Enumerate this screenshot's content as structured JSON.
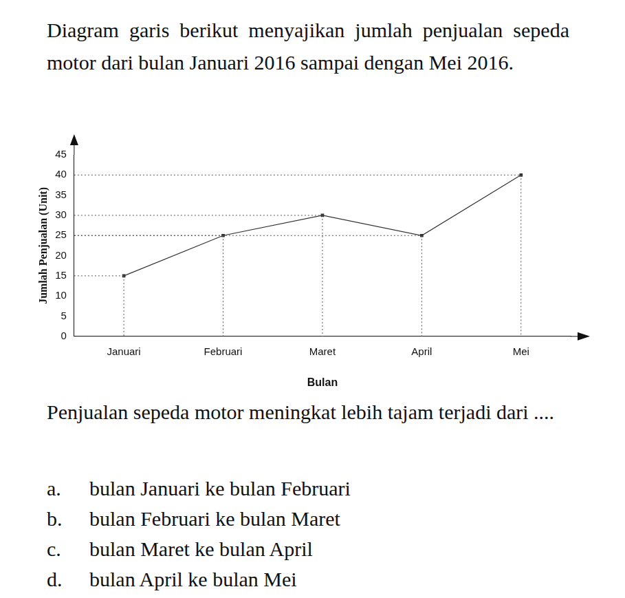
{
  "intro": "Diagram garis berikut menyajikan jumlah penjualan sepeda motor dari bulan Januari 2016 sampai dengan Mei 2016.",
  "chart_data": {
    "type": "line",
    "x_label": "Bulan",
    "y_label": "Jumlah Penjualan (Unit)",
    "categories": [
      "Januari",
      "Februari",
      "Maret",
      "April",
      "Mei"
    ],
    "values": [
      15,
      25,
      30,
      25,
      40
    ],
    "color": "#333333",
    "ylim": [
      0,
      45
    ],
    "yticks": [
      0,
      5,
      10,
      15,
      20,
      25,
      30,
      35,
      40,
      45
    ],
    "grid": false,
    "marker": "square",
    "line_style": "solid"
  },
  "question": "Penjualan sepeda motor meningkat lebih tajam terjadi dari ....",
  "options": [
    {
      "letter": "a.",
      "text": "bulan Januari ke bulan Februari"
    },
    {
      "letter": "b.",
      "text": "bulan Februari ke bulan Maret"
    },
    {
      "letter": "c.",
      "text": "bulan Maret ke bulan April"
    },
    {
      "letter": "d.",
      "text": "bulan April ke bulan Mei"
    }
  ]
}
